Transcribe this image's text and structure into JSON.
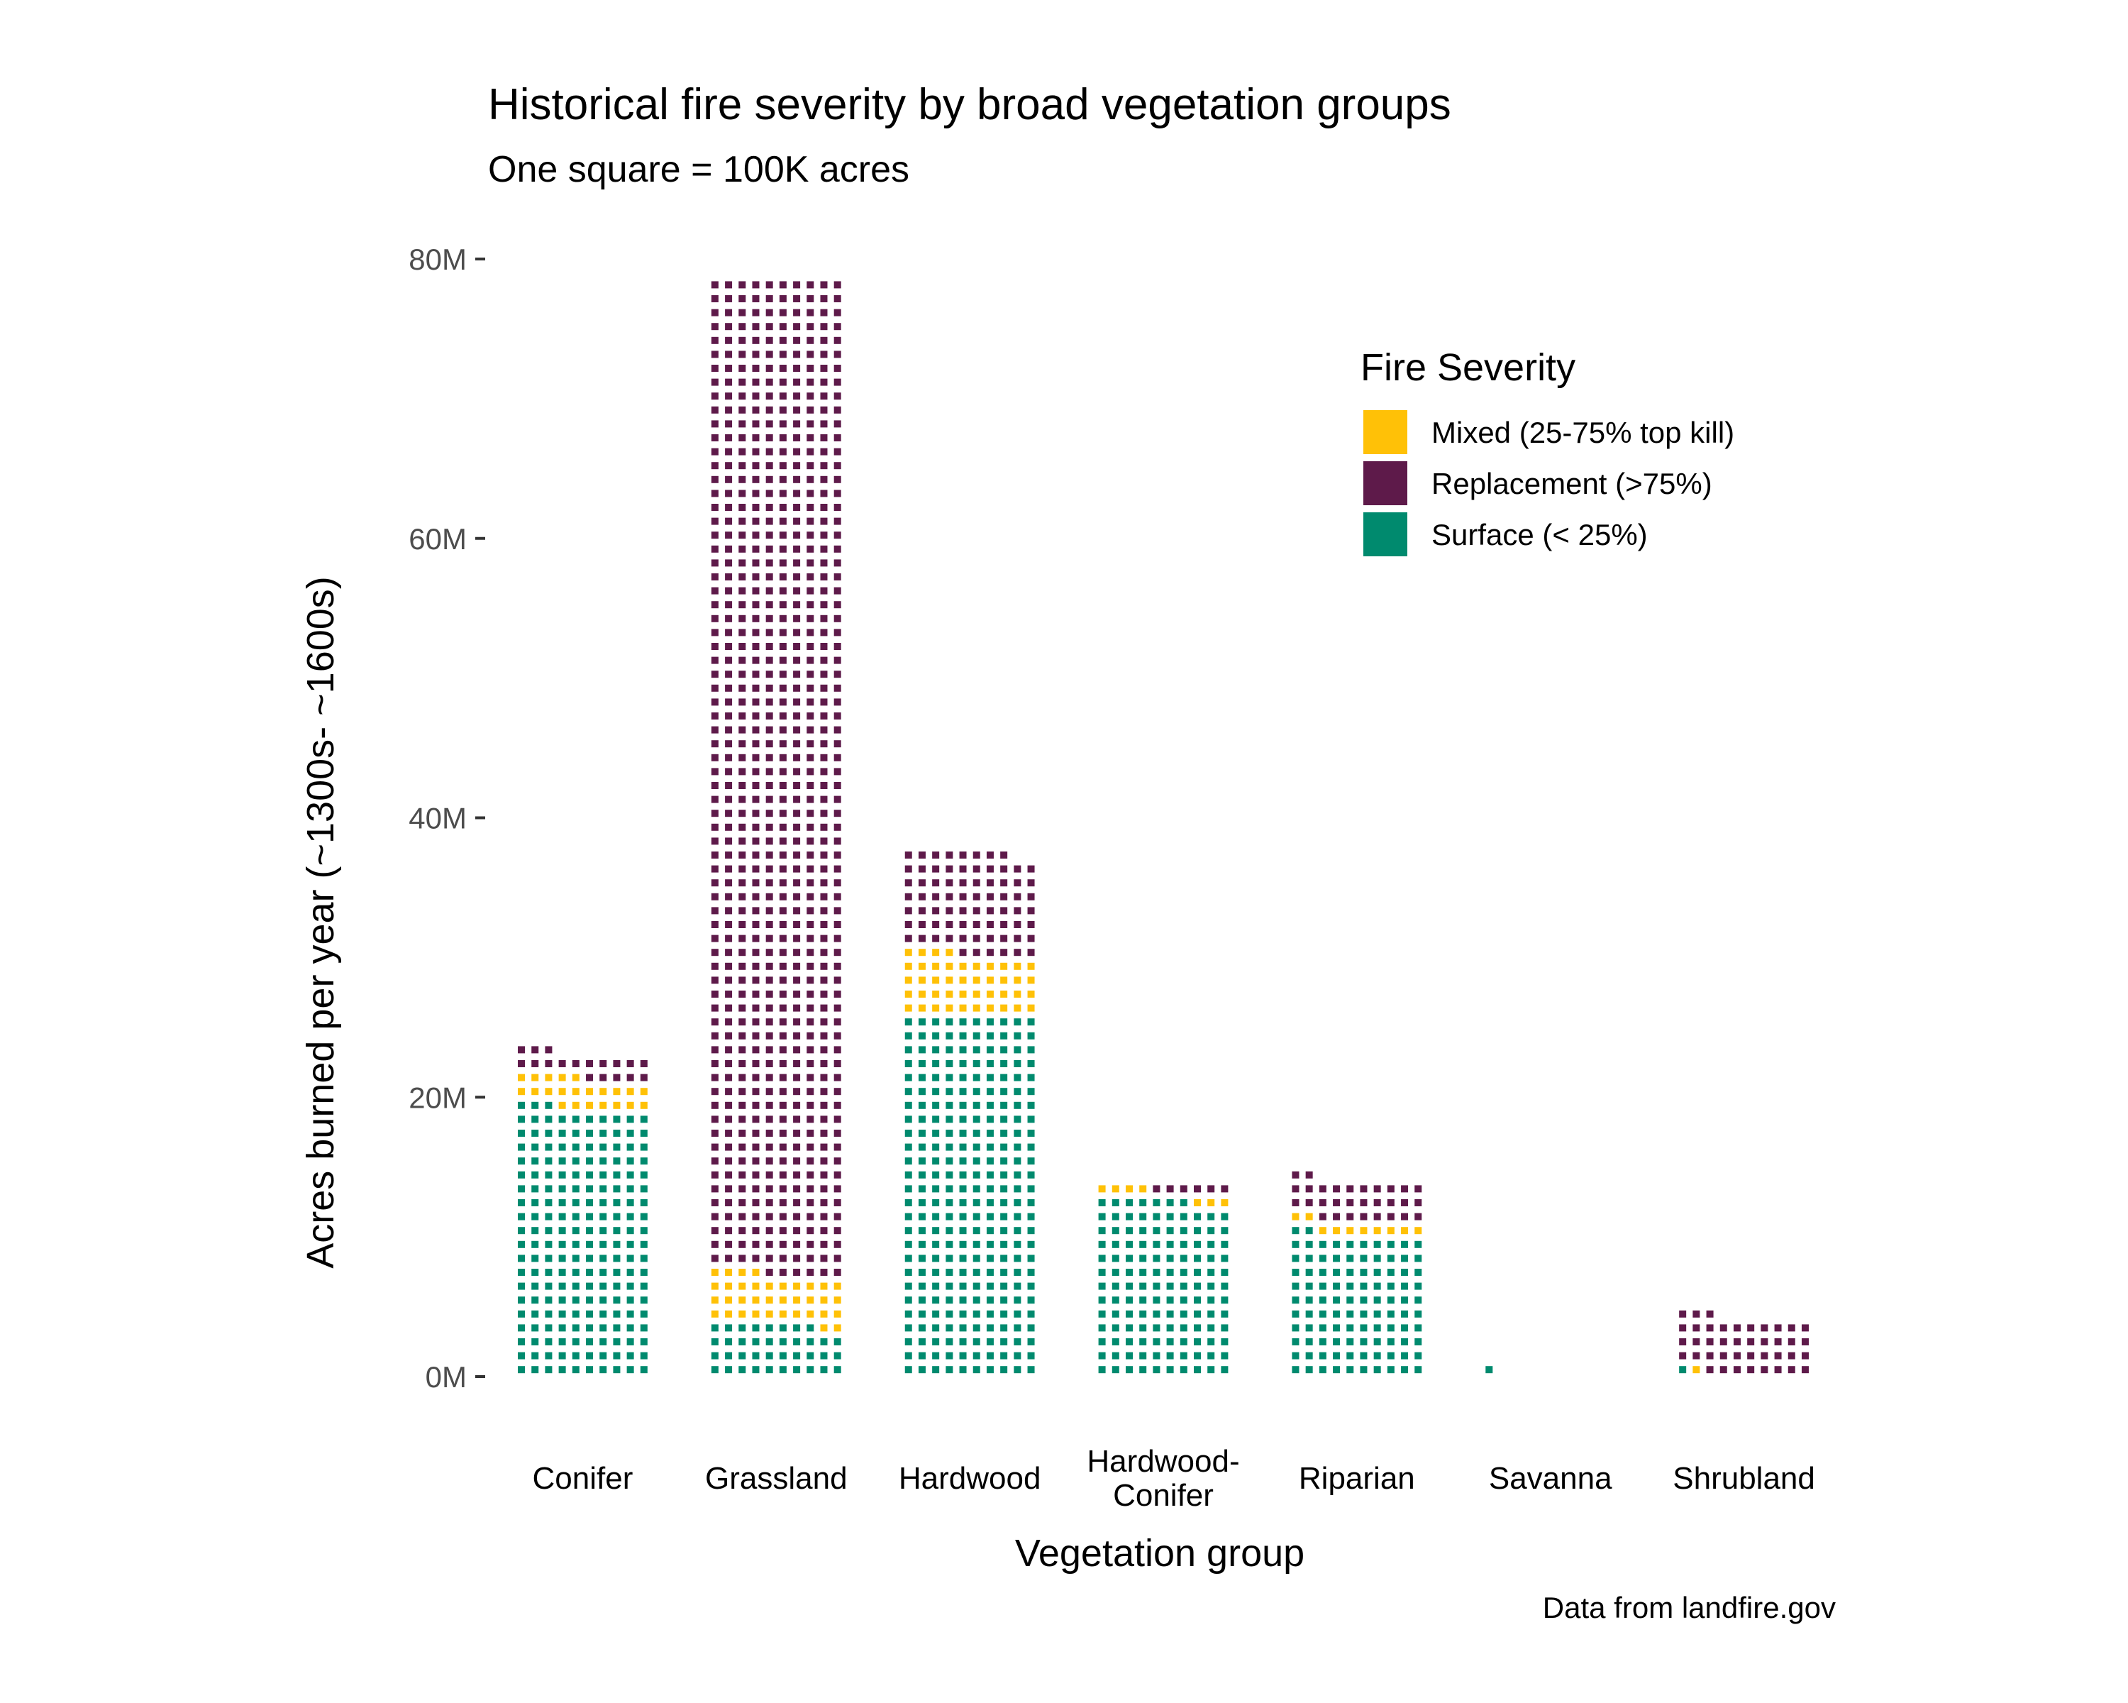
{
  "chart_data": {
    "type": "bar",
    "title": "Historical fire severity by broad vegetation groups",
    "subtitle": "One square = 100K acres",
    "xlabel": "Vegetation group",
    "ylabel": "Acres burned per year (~1300s- ~1600s)",
    "caption": "Data from landfire.gov",
    "ylim": [
      0,
      80
    ],
    "yticks": [
      0,
      20,
      40,
      60,
      80
    ],
    "ytick_labels": [
      "0M",
      "20M",
      "40M",
      "60M",
      "80M"
    ],
    "grid": false,
    "legend": {
      "title": "Fire Severity",
      "placement": "top-right"
    },
    "categories": [
      {
        "label_lines": [
          "Conifer"
        ],
        "surface": 19.3,
        "mixed": 2.2,
        "replacement": 1.8
      },
      {
        "label_lines": [
          "Grassland"
        ],
        "surface": 3.8,
        "mixed": 3.6,
        "replacement": 71.6
      },
      {
        "label_lines": [
          "Hardwood"
        ],
        "surface": 26.0,
        "mixed": 4.4,
        "replacement": 7.4
      },
      {
        "label_lines": [
          "Hardwood-",
          "Conifer"
        ],
        "surface": 12.7,
        "mixed": 0.7,
        "replacement": 0.6
      },
      {
        "label_lines": [
          "Riparian"
        ],
        "surface": 10.2,
        "mixed": 1.0,
        "replacement": 3.0
      },
      {
        "label_lines": [
          "Savanna"
        ],
        "surface": 0.1,
        "mixed": 0.0,
        "replacement": 0.0
      },
      {
        "label_lines": [
          "Shrubland"
        ],
        "surface": 0.1,
        "mixed": 0.1,
        "replacement": 4.1
      }
    ],
    "series": [
      {
        "key": "mixed",
        "name": "Mixed (25-75% top kill)",
        "color": "#FFC107"
      },
      {
        "key": "replacement",
        "name": "Replacement (>75%)",
        "color": "#5E1A4A"
      },
      {
        "key": "surface",
        "name": "Surface (< 25%)",
        "color": "#008A6E"
      }
    ],
    "stack_order": [
      "surface",
      "mixed",
      "replacement"
    ],
    "waffle_columns": 10,
    "units_per_square": 0.1
  }
}
